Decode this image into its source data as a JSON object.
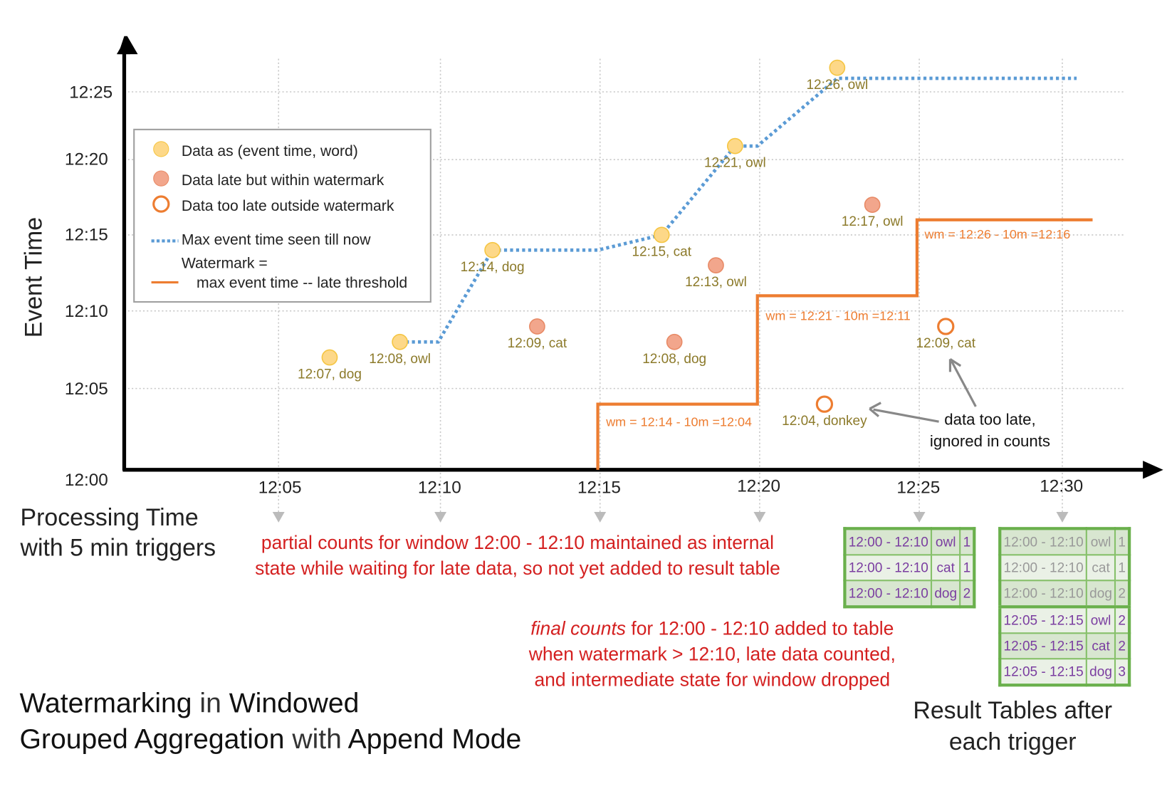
{
  "axes": {
    "y_label": "Event Time",
    "x_label_line1": "Processing Time",
    "x_label_line2": "with 5 min triggers",
    "y_ticks": [
      "12:00",
      "12:05",
      "12:10",
      "12:15",
      "12:20",
      "12:25"
    ],
    "x_ticks": [
      "12:05",
      "12:10",
      "12:15",
      "12:20",
      "12:25",
      "12:30"
    ]
  },
  "legend": {
    "data": "Data as (event time, word)",
    "late": "Data late but within watermark",
    "too_late": "Data too late outside watermark",
    "max": "Max event time seen till now",
    "watermark_line1": "Watermark =",
    "watermark_line2": "max event time -- late threshold"
  },
  "colors": {
    "on_time": "#fdd888",
    "late": "#f2a68c",
    "too_late": "#ed7d31",
    "max_line": "#5b9bd5",
    "watermark": "#ed7d31",
    "label": "#8c7a2a",
    "annotation": "#d42020",
    "table_border": "#6ab04c",
    "table_text": "#7a3da0"
  },
  "diagram": {
    "points": [
      {
        "label": "12:07, dog",
        "event_min": 7,
        "proc_min": 6.6,
        "kind": "on_time"
      },
      {
        "label": "12:08, owl",
        "event_min": 8,
        "proc_min": 8.8,
        "kind": "on_time"
      },
      {
        "label": "12:14, dog",
        "event_min": 14,
        "proc_min": 11.7,
        "kind": "on_time"
      },
      {
        "label": "12:09, cat",
        "event_min": 9,
        "proc_min": 13.1,
        "kind": "late"
      },
      {
        "label": "12:15, cat",
        "event_min": 15,
        "proc_min": 17.0,
        "kind": "on_time"
      },
      {
        "label": "12:08, dog",
        "event_min": 8,
        "proc_min": 17.4,
        "kind": "late"
      },
      {
        "label": "12:13, owl",
        "event_min": 13,
        "proc_min": 18.7,
        "kind": "late"
      },
      {
        "label": "12:21, owl",
        "event_min": 21,
        "proc_min": 19.3,
        "kind": "on_time"
      },
      {
        "label": "12:04, donkey",
        "event_min": 4,
        "proc_min": 22.1,
        "kind": "too_late"
      },
      {
        "label": "12:26, owl",
        "event_min": 26,
        "proc_min": 22.5,
        "kind": "on_time"
      },
      {
        "label": "12:17, owl",
        "event_min": 17,
        "proc_min": 23.6,
        "kind": "late"
      },
      {
        "label": "12:09, cat",
        "event_min": 9,
        "proc_min": 25.9,
        "kind": "too_late"
      }
    ],
    "max_event_line": [
      [
        8.8,
        8
      ],
      [
        10,
        8
      ],
      [
        11.7,
        14
      ],
      [
        15,
        14
      ],
      [
        17,
        15
      ],
      [
        19.3,
        21
      ],
      [
        20,
        21
      ],
      [
        22.5,
        26
      ],
      [
        30,
        26
      ]
    ],
    "watermark_line": [
      [
        15,
        0
      ],
      [
        15,
        4
      ],
      [
        20,
        4
      ],
      [
        20,
        11
      ],
      [
        25,
        11
      ],
      [
        25,
        16
      ],
      [
        30.5,
        16
      ]
    ],
    "watermark_labels": [
      "wm = 12:14 - 10m =12:04",
      "wm = 12:21 - 10m =12:11",
      "wm = 12:26 - 10m =12:16"
    ]
  },
  "annotations": {
    "too_late_line1": "data too late,",
    "too_late_line2": "ignored in counts",
    "partial_line1": "partial counts for window 12:00 - 12:10 maintained as internal",
    "partial_line2": "state while waiting for late data, so not yet added  to result table",
    "final_em": "final counts",
    "final_line1_rest": " for 12:00 - 12:10 added to table",
    "final_line2": "when watermark > 12:10, late data counted,",
    "final_line3": "and intermediate state for window dropped"
  },
  "title": {
    "b1": "Watermarking",
    "t1": " in ",
    "b2": "Windowed",
    "b3": "Grouped Aggregation",
    "t2": " with ",
    "b4": "Append Mode"
  },
  "result_tables": {
    "caption_line1": "Result Tables after",
    "caption_line2": "each trigger",
    "trigger_1225": [
      [
        "12:00 - 12:10",
        "owl",
        "1"
      ],
      [
        "12:00 - 12:10",
        "cat",
        "1"
      ],
      [
        "12:00 - 12:10",
        "dog",
        "2"
      ]
    ],
    "trigger_1230": [
      [
        "12:00 - 12:10",
        "owl",
        "1"
      ],
      [
        "12:00 - 12:10",
        "cat",
        "1"
      ],
      [
        "12:00 - 12:10",
        "dog",
        "2"
      ],
      [
        "12:05 - 12:15",
        "owl",
        "2"
      ],
      [
        "12:05 - 12:15",
        "cat",
        "2"
      ],
      [
        "12:05 - 12:15",
        "dog",
        "3"
      ]
    ]
  }
}
